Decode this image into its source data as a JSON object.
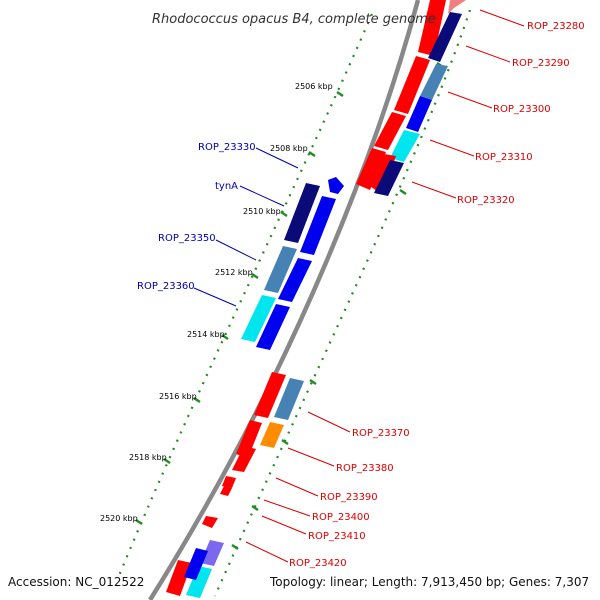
{
  "title": "Rhodococcus opacus B4, complete genome",
  "footer": {
    "accession": "Accession: NC_012522",
    "topology": "Topology: linear; Length: 7,913,450 bp; Genes: 7,307"
  },
  "ticks": [
    "2506 kbp",
    "2508 kbp",
    "2510 kbp",
    "2512 kbp",
    "2514 kbp",
    "2516 kbp",
    "2518 kbp",
    "2520 kbp"
  ],
  "labels_left": [
    "ROP_23330",
    "tynA",
    "ROP_23350",
    "ROP_23360"
  ],
  "labels_right": [
    "ROP_23280",
    "ROP_23290",
    "ROP_23300",
    "ROP_23310",
    "ROP_23320",
    "ROP_23370",
    "ROP_23380",
    "ROP_23390",
    "ROP_23400",
    "ROP_23410",
    "ROP_23420"
  ],
  "colors": {
    "backbone": "#888888",
    "tick": "#228B22",
    "label_left": "#0000AA",
    "label_right": "#DD0000",
    "red": "#FF0000",
    "navy": "#0A0A78",
    "blue": "#0000F0",
    "steel": "#4682B4",
    "cyan": "#00E5EE",
    "orange": "#FF8C00",
    "purple": "#7B68EE",
    "pink": "#F08080"
  }
}
